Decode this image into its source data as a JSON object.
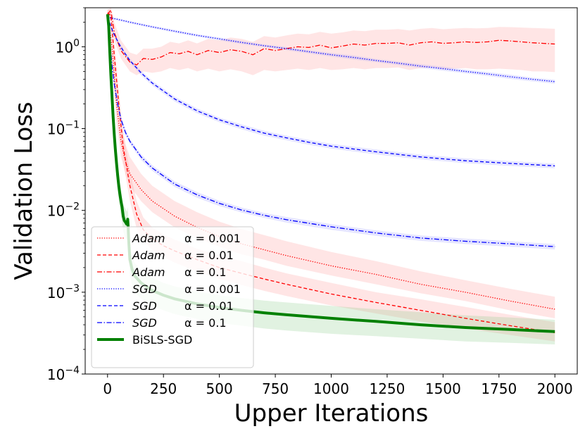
{
  "chart_data": {
    "type": "line",
    "title": "",
    "xlabel": "Upper Iterations",
    "ylabel": "Validation Loss",
    "yscale": "log",
    "xlim": [
      -100,
      2100
    ],
    "ylim": [
      0.0001,
      3
    ],
    "x_ticks": [
      0,
      250,
      500,
      750,
      1000,
      1250,
      1500,
      1750,
      2000
    ],
    "x_tick_labels": [
      "0",
      "250",
      "500",
      "750",
      "1000",
      "1250",
      "1500",
      "1750",
      "2000"
    ],
    "y_ticks": [
      0.0001,
      0.001,
      0.01,
      0.1,
      1
    ],
    "y_tick_labels": [
      {
        "base": "10",
        "exp": "−4"
      },
      {
        "base": "10",
        "exp": "−3"
      },
      {
        "base": "10",
        "exp": "−2"
      },
      {
        "base": "10",
        "exp": "−1"
      },
      {
        "base": "10",
        "exp": "0"
      }
    ],
    "legend_position": "lower-left",
    "series": [
      {
        "name": "Adam  α = 0.001",
        "name_italic": "Adam",
        "name_param": "α = 0.001",
        "color": "#ff0000",
        "dash": "dotted",
        "width": 1.3,
        "band_color": "#ff9999",
        "x": [
          0,
          20,
          40,
          60,
          80,
          100,
          150,
          200,
          300,
          400,
          500,
          600,
          700,
          800,
          1000,
          1200,
          1400,
          1600,
          1800,
          2000
        ],
        "y": [
          2.5,
          1.0,
          0.2,
          0.07,
          0.04,
          0.028,
          0.018,
          0.013,
          0.0085,
          0.0062,
          0.0048,
          0.0039,
          0.0033,
          0.0028,
          0.0021,
          0.00165,
          0.00125,
          0.001,
          0.00078,
          0.00062
        ],
        "band_lower": [
          2.2,
          0.7,
          0.12,
          0.045,
          0.028,
          0.02,
          0.013,
          0.0095,
          0.0062,
          0.0046,
          0.0036,
          0.0029,
          0.0025,
          0.0021,
          0.0016,
          0.00125,
          0.00097,
          0.00078,
          0.0006,
          0.00048
        ],
        "band_upper": [
          2.8,
          1.6,
          0.35,
          0.12,
          0.065,
          0.045,
          0.028,
          0.02,
          0.013,
          0.0095,
          0.0073,
          0.0059,
          0.005,
          0.0042,
          0.0031,
          0.0024,
          0.0018,
          0.0014,
          0.0011,
          0.00088
        ]
      },
      {
        "name": "Adam  α = 0.01",
        "name_italic": "Adam",
        "name_param": "α = 0.01",
        "color": "#ff0000",
        "dash": "dashed",
        "width": 1.3,
        "band_color": "#ff9999",
        "x": [
          0,
          15,
          30,
          50,
          70,
          100,
          130,
          160,
          200,
          250,
          300,
          400,
          500,
          600,
          700,
          800,
          1000,
          1200,
          1400,
          1600,
          1800,
          2000
        ],
        "y": [
          2.6,
          2.4,
          0.8,
          0.2,
          0.06,
          0.02,
          0.009,
          0.0058,
          0.0045,
          0.0037,
          0.0032,
          0.0025,
          0.002,
          0.0017,
          0.00145,
          0.00125,
          0.00095,
          0.00075,
          0.0006,
          0.00048,
          0.00039,
          0.00032
        ],
        "band_lower": [
          2.3,
          2.0,
          0.6,
          0.14,
          0.04,
          0.013,
          0.006,
          0.0042,
          0.0033,
          0.0027,
          0.0023,
          0.0018,
          0.00145,
          0.00122,
          0.00104,
          0.0009,
          0.00069,
          0.00055,
          0.00044,
          0.00036,
          0.0003,
          0.00025
        ],
        "band_upper": [
          2.9,
          2.8,
          1.1,
          0.3,
          0.09,
          0.03,
          0.013,
          0.0082,
          0.0062,
          0.0051,
          0.0044,
          0.0034,
          0.0028,
          0.0024,
          0.002,
          0.0017,
          0.0013,
          0.001,
          0.00082,
          0.00066,
          0.00053,
          0.00043
        ]
      },
      {
        "name": "Adam  α = 0.1",
        "name_italic": "Adam",
        "name_param": "α = 0.1",
        "color": "#ff0000",
        "dash": "dashdot",
        "width": 1.3,
        "band_color": "#ff9999",
        "x": [
          0,
          15,
          30,
          60,
          100,
          130,
          160,
          200,
          240,
          280,
          320,
          360,
          400,
          450,
          500,
          550,
          600,
          650,
          700,
          750,
          800,
          850,
          900,
          950,
          1000,
          1050,
          1100,
          1150,
          1200,
          1250,
          1300,
          1350,
          1400,
          1450,
          1500,
          1550,
          1600,
          1650,
          1700,
          1750,
          1800,
          1850,
          1900,
          1950,
          2000
        ],
        "y": [
          2.5,
          2.8,
          1.5,
          0.9,
          0.65,
          0.6,
          0.72,
          0.7,
          0.75,
          0.85,
          0.82,
          0.88,
          0.8,
          0.9,
          0.85,
          0.92,
          0.88,
          0.8,
          0.95,
          0.9,
          0.95,
          1.0,
          0.98,
          1.05,
          0.97,
          1.02,
          1.08,
          1.05,
          1.1,
          1.1,
          1.12,
          1.05,
          1.12,
          1.15,
          1.1,
          1.12,
          1.15,
          1.13,
          1.15,
          1.2,
          1.18,
          1.15,
          1.12,
          1.1,
          1.08
        ],
        "band_lower": [
          2.2,
          2.3,
          1.2,
          0.72,
          0.5,
          0.45,
          0.5,
          0.48,
          0.5,
          0.55,
          0.52,
          0.55,
          0.5,
          0.54,
          0.5,
          0.53,
          0.5,
          0.45,
          0.52,
          0.5,
          0.52,
          0.54,
          0.52,
          0.55,
          0.52,
          0.53,
          0.55,
          0.53,
          0.55,
          0.55,
          0.56,
          0.52,
          0.55,
          0.56,
          0.53,
          0.54,
          0.55,
          0.53,
          0.53,
          0.54,
          0.53,
          0.52,
          0.5,
          0.5,
          0.49
        ],
        "band_upper": [
          2.8,
          3.0,
          2.0,
          1.2,
          0.85,
          0.8,
          0.95,
          0.95,
          1.0,
          1.15,
          1.1,
          1.2,
          1.1,
          1.25,
          1.2,
          1.3,
          1.25,
          1.15,
          1.35,
          1.3,
          1.38,
          1.45,
          1.42,
          1.52,
          1.45,
          1.5,
          1.58,
          1.55,
          1.62,
          1.62,
          1.65,
          1.58,
          1.66,
          1.7,
          1.64,
          1.67,
          1.7,
          1.68,
          1.7,
          1.75,
          1.74,
          1.72,
          1.7,
          1.68,
          1.66
        ]
      },
      {
        "name": "SGD  α = 0.001",
        "name_italic": "SGD",
        "name_param": "α = 0.001",
        "color": "#0000ff",
        "dash": "dotted",
        "width": 1.3,
        "band_color": "#9999ff",
        "x": [
          0,
          50,
          100,
          200,
          300,
          400,
          500,
          600,
          700,
          800,
          900,
          1000,
          1100,
          1200,
          1300,
          1400,
          1500,
          1600,
          1700,
          1800,
          1900,
          2000
        ],
        "y": [
          2.3,
          2.15,
          2.0,
          1.75,
          1.55,
          1.38,
          1.25,
          1.13,
          1.03,
          0.95,
          0.87,
          0.8,
          0.74,
          0.68,
          0.63,
          0.58,
          0.54,
          0.5,
          0.465,
          0.43,
          0.4,
          0.375
        ],
        "band_lower": [
          2.22,
          2.08,
          1.93,
          1.69,
          1.49,
          1.33,
          1.2,
          1.08,
          0.99,
          0.91,
          0.83,
          0.76,
          0.7,
          0.65,
          0.6,
          0.55,
          0.51,
          0.475,
          0.44,
          0.405,
          0.378,
          0.355
        ],
        "band_upper": [
          2.38,
          2.22,
          2.07,
          1.81,
          1.61,
          1.43,
          1.3,
          1.18,
          1.07,
          0.99,
          0.91,
          0.84,
          0.78,
          0.71,
          0.66,
          0.61,
          0.57,
          0.525,
          0.49,
          0.455,
          0.42,
          0.395
        ]
      },
      {
        "name": "SGD  α = 0.01",
        "name_italic": "SGD",
        "name_param": "α = 0.01",
        "color": "#0000ff",
        "dash": "dashed",
        "width": 1.3,
        "band_color": "#9999ff",
        "x": [
          0,
          25,
          50,
          75,
          100,
          150,
          200,
          300,
          400,
          500,
          600,
          700,
          800,
          900,
          1000,
          1200,
          1400,
          1600,
          1800,
          2000
        ],
        "y": [
          2.3,
          1.5,
          1.1,
          0.85,
          0.68,
          0.48,
          0.36,
          0.23,
          0.165,
          0.128,
          0.105,
          0.088,
          0.077,
          0.068,
          0.061,
          0.052,
          0.045,
          0.0405,
          0.0375,
          0.035
        ],
        "band_lower": [
          2.2,
          1.42,
          1.04,
          0.8,
          0.64,
          0.45,
          0.337,
          0.215,
          0.154,
          0.12,
          0.098,
          0.082,
          0.072,
          0.0635,
          0.057,
          0.0485,
          0.042,
          0.0378,
          0.035,
          0.0327
        ],
        "band_upper": [
          2.4,
          1.58,
          1.16,
          0.9,
          0.72,
          0.51,
          0.383,
          0.245,
          0.176,
          0.136,
          0.112,
          0.094,
          0.082,
          0.0725,
          0.065,
          0.0555,
          0.048,
          0.0432,
          0.04,
          0.0373
        ]
      },
      {
        "name": "SGD  α = 0.1",
        "name_italic": "SGD",
        "name_param": "α = 0.1",
        "color": "#0000ff",
        "dash": "dashdot",
        "width": 1.3,
        "band_color": "#9999ff",
        "x": [
          0,
          10,
          20,
          30,
          45,
          60,
          80,
          100,
          150,
          200,
          300,
          400,
          500,
          600,
          700,
          800,
          1000,
          1200,
          1400,
          1600,
          1800,
          2000
        ],
        "y": [
          2.3,
          1.2,
          0.6,
          0.35,
          0.2,
          0.13,
          0.09,
          0.07,
          0.045,
          0.033,
          0.021,
          0.0155,
          0.0122,
          0.0101,
          0.0087,
          0.0077,
          0.0063,
          0.0053,
          0.0046,
          0.0042,
          0.0039,
          0.0036
        ],
        "band_lower": [
          2.2,
          1.12,
          0.56,
          0.325,
          0.185,
          0.12,
          0.083,
          0.065,
          0.0415,
          0.0305,
          0.0194,
          0.0143,
          0.0113,
          0.0094,
          0.0081,
          0.0071,
          0.0058,
          0.0049,
          0.00425,
          0.00388,
          0.0036,
          0.00333
        ],
        "band_upper": [
          2.4,
          1.28,
          0.64,
          0.375,
          0.215,
          0.14,
          0.097,
          0.075,
          0.0485,
          0.0355,
          0.0226,
          0.0167,
          0.0131,
          0.0108,
          0.0093,
          0.0083,
          0.0068,
          0.0057,
          0.00495,
          0.00452,
          0.0042,
          0.00387
        ]
      },
      {
        "name": "BiSLS-SGD",
        "name_italic": "",
        "name_param": "BiSLS-SGD",
        "color": "#008000",
        "dash": "solid",
        "width": 4,
        "band_color": "#88cc88",
        "x": [
          0,
          5,
          10,
          15,
          20,
          25,
          30,
          35,
          40,
          45,
          50,
          55,
          60,
          65,
          70,
          75,
          80,
          85,
          88,
          90,
          92,
          95,
          100,
          110,
          120,
          150,
          200,
          250,
          300,
          400,
          500,
          600,
          700,
          800,
          1000,
          1200,
          1400,
          1600,
          1800,
          2000
        ],
        "y": [
          2.5,
          1.8,
          0.9,
          0.45,
          0.25,
          0.14,
          0.085,
          0.055,
          0.038,
          0.027,
          0.02,
          0.016,
          0.013,
          0.011,
          0.0085,
          0.0075,
          0.0072,
          0.0068,
          0.0068,
          0.0078,
          0.0065,
          0.004,
          0.0025,
          0.0019,
          0.0016,
          0.0013,
          0.00105,
          0.00092,
          0.00083,
          0.00072,
          0.00065,
          0.0006,
          0.00056,
          0.00053,
          0.00048,
          0.00044,
          0.0004,
          0.00037,
          0.00035,
          0.00033
        ],
        "band_lower": [
          2.2,
          1.5,
          0.7,
          0.33,
          0.18,
          0.1,
          0.06,
          0.038,
          0.026,
          0.018,
          0.0133,
          0.0105,
          0.0085,
          0.0072,
          0.0056,
          0.0049,
          0.0047,
          0.0044,
          0.0044,
          0.005,
          0.0042,
          0.0026,
          0.0016,
          0.00122,
          0.00102,
          0.00083,
          0.00068,
          0.0006,
          0.00054,
          0.00047,
          0.00042,
          0.00039,
          0.00036,
          0.00034,
          0.00031,
          0.00029,
          0.00027,
          0.00025,
          0.00024,
          0.00023
        ],
        "band_upper": [
          2.8,
          2.1,
          1.15,
          0.6,
          0.34,
          0.19,
          0.115,
          0.075,
          0.052,
          0.037,
          0.027,
          0.022,
          0.018,
          0.015,
          0.012,
          0.011,
          0.0105,
          0.0098,
          0.0098,
          0.011,
          0.0093,
          0.0057,
          0.0036,
          0.0027,
          0.0023,
          0.00185,
          0.0015,
          0.0013,
          0.00118,
          0.00102,
          0.00092,
          0.00085,
          0.00079,
          0.00075,
          0.00068,
          0.00062,
          0.00057,
          0.00052,
          0.00049,
          0.00046
        ]
      }
    ]
  }
}
